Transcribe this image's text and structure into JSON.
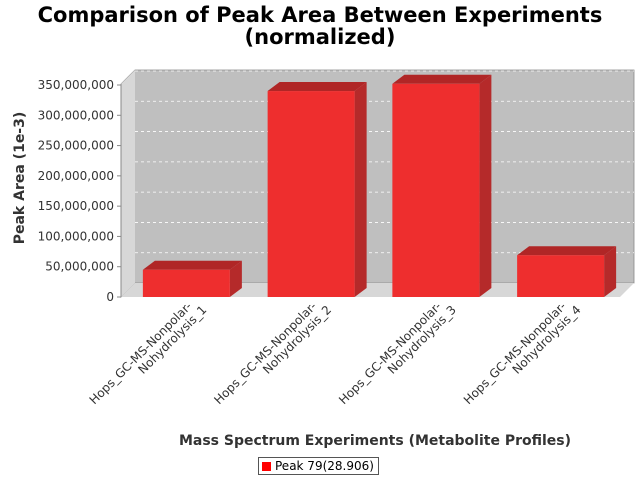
{
  "chart_data": {
    "type": "bar",
    "title_line1": "Comparison of Peak Area Between Experiments",
    "title_line2": "(normalized)",
    "xlabel": "Mass Spectrum Experiments (Metabolite Profiles)",
    "ylabel": "Peak Area (1e-3)",
    "categories": [
      [
        "Hops_GC-MS-Nonpolar-",
        "Nohydrolysis_1"
      ],
      [
        "Hops_GC-MS-Nonpolar-",
        "Nohydrolysis_2"
      ],
      [
        "Hops_GC-MS-Nonpolar-",
        "Nohydrolysis_3"
      ],
      [
        "Hops_GC-MS-Nonpolar-",
        "Nohydrolysis_4"
      ]
    ],
    "series": [
      {
        "name": "Peak 79(28.906)",
        "values": [
          45000000,
          340000000,
          352000000,
          69000000
        ]
      }
    ],
    "ylim": [
      0,
      350000000
    ],
    "yticks": [
      "0",
      "50,000,000",
      "100,000,000",
      "150,000,000",
      "200,000,000",
      "250,000,000",
      "300,000,000",
      "350,000,000"
    ],
    "ytick_values": [
      0,
      50000000,
      100000000,
      150000000,
      200000000,
      250000000,
      300000000,
      350000000
    ],
    "grid": true,
    "legend_position": "bottom",
    "style": "3d",
    "colors": {
      "bar": "#ee2e2e",
      "bar_top": "#b02626",
      "bar_side": "#b52a2a",
      "plot_bg": "#bfbfbf",
      "plot_wall": "#d7d7d7"
    }
  }
}
